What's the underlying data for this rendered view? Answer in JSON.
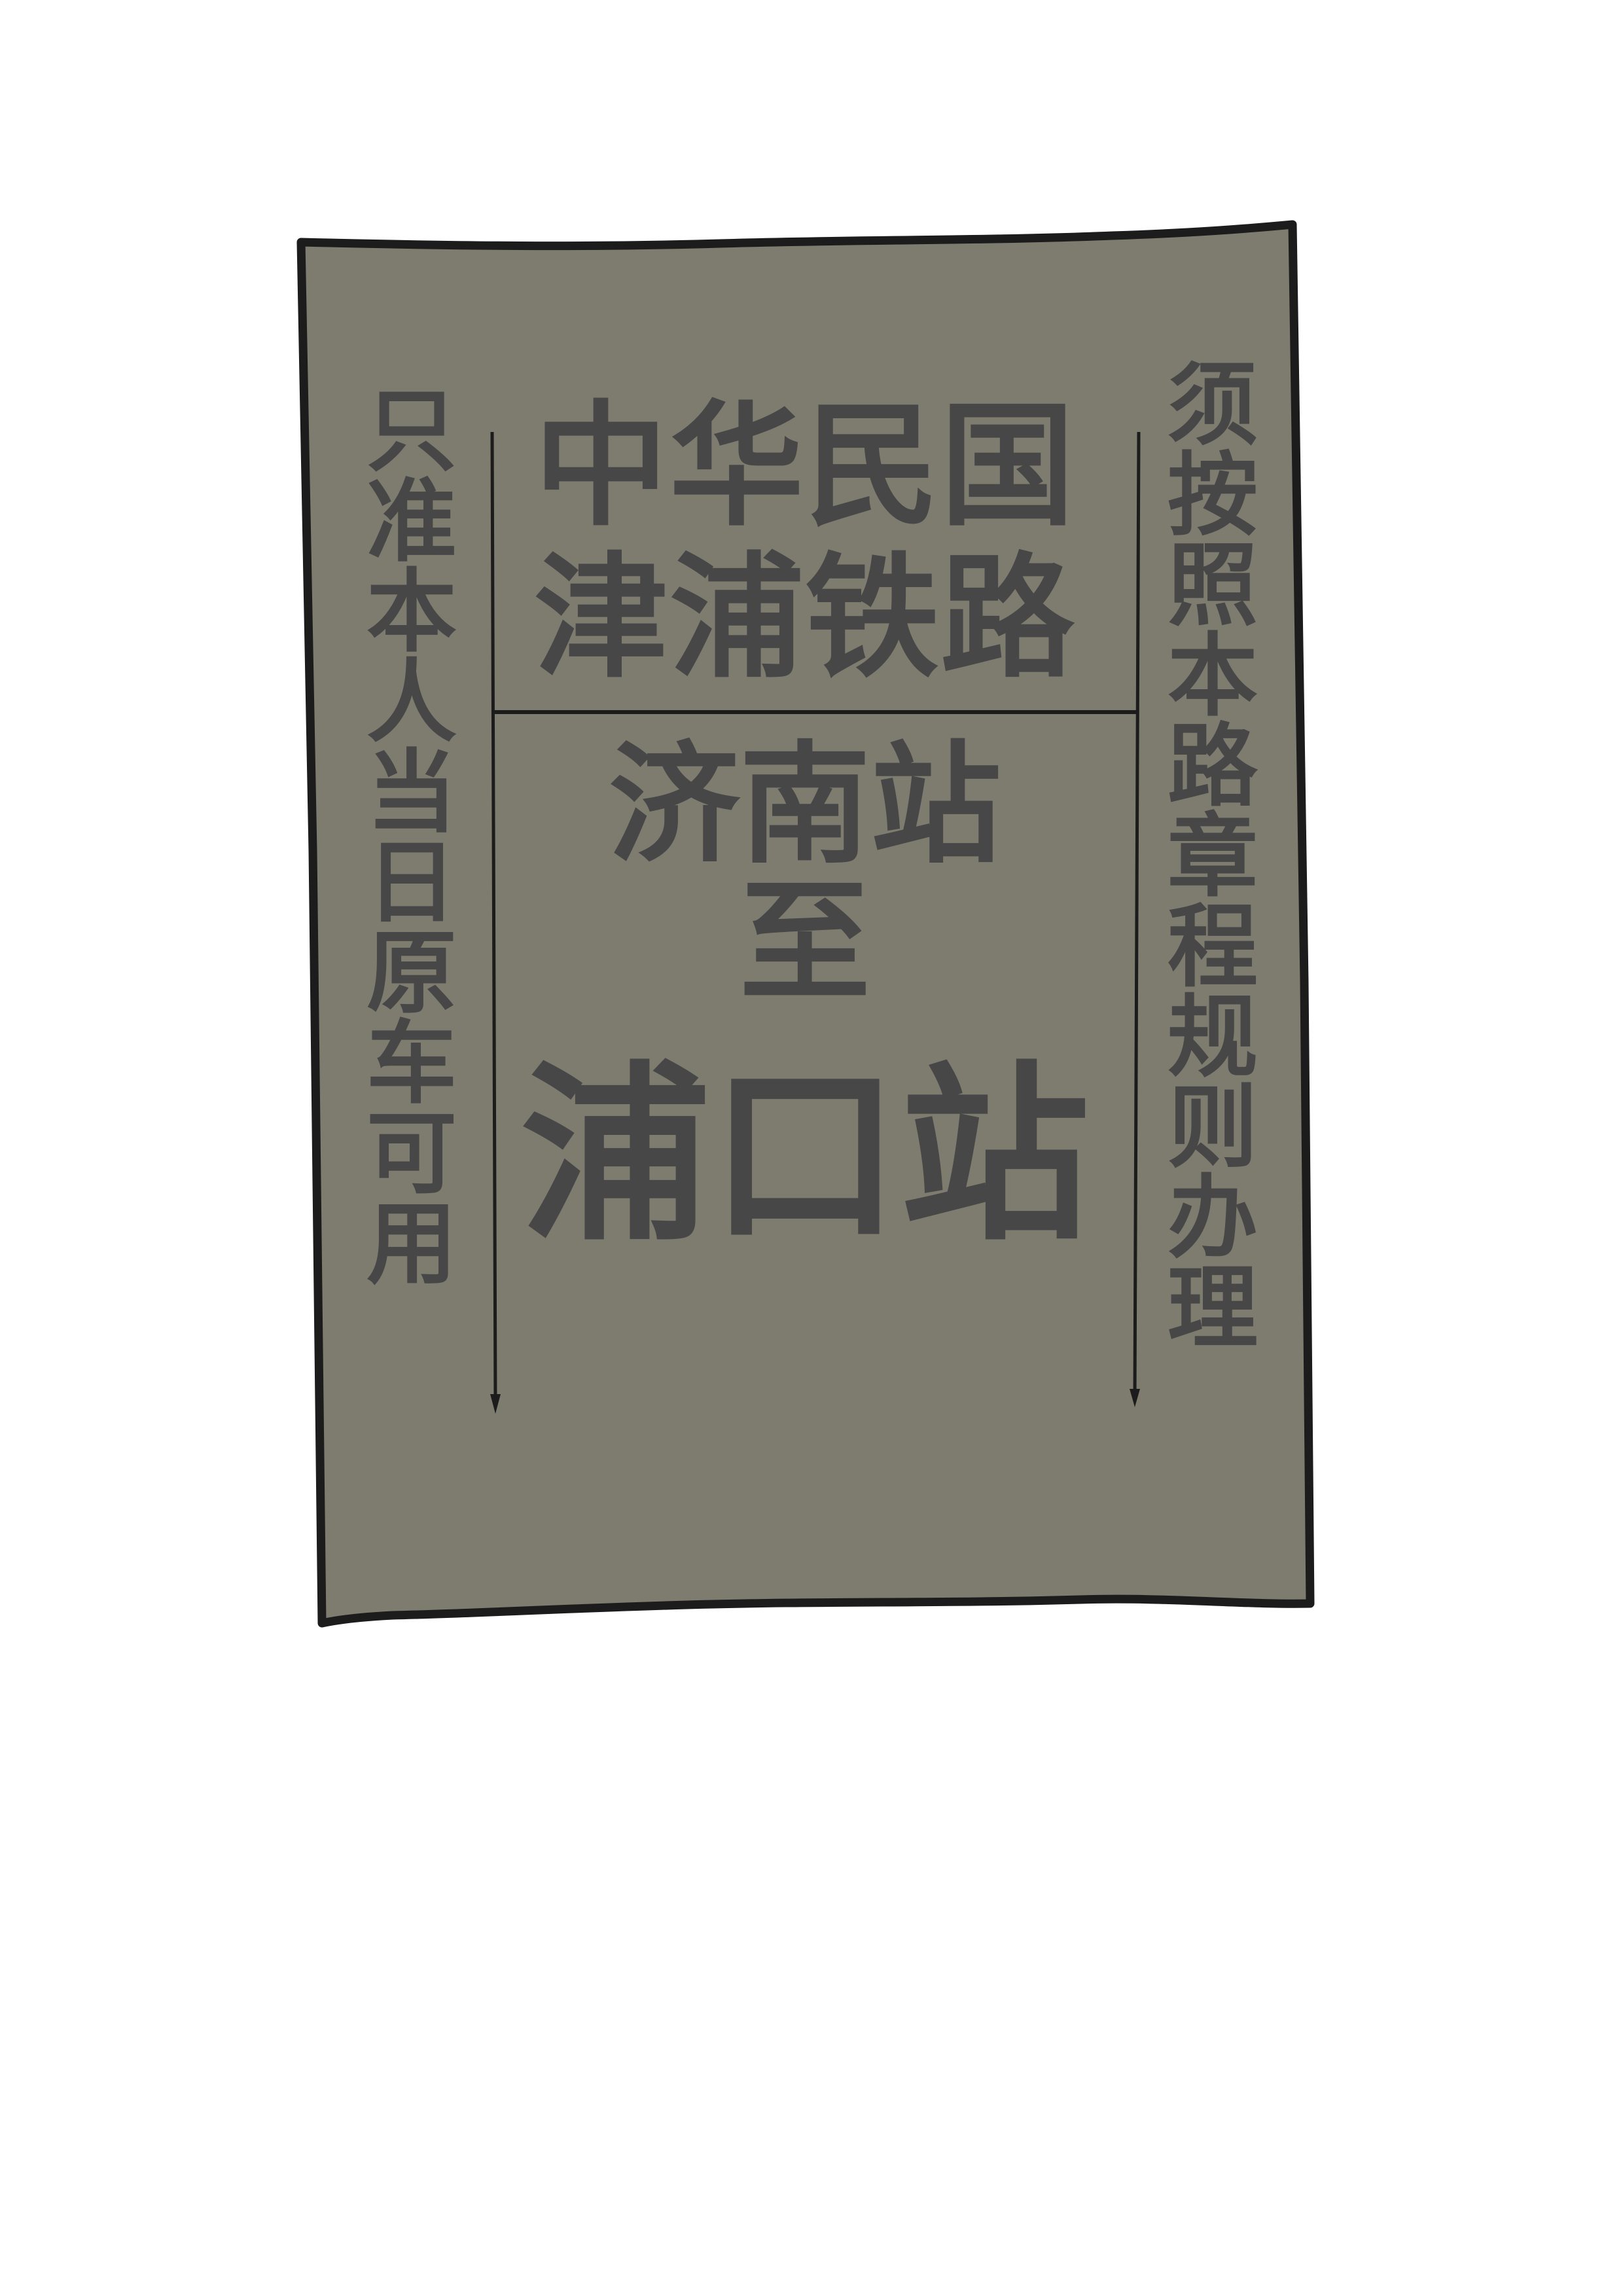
{
  "ticket": {
    "title_line1": "中华民国",
    "title_line2": "津浦铁路",
    "origin": "济南站",
    "to_word": "至",
    "destination": "浦口站",
    "left_note": "只准本人当日原车可用",
    "right_note": "须按照本路章程规则办理",
    "colors": {
      "paper": "#7e7b6f",
      "ink": "#474747",
      "outline": "#1c1c1c"
    }
  }
}
